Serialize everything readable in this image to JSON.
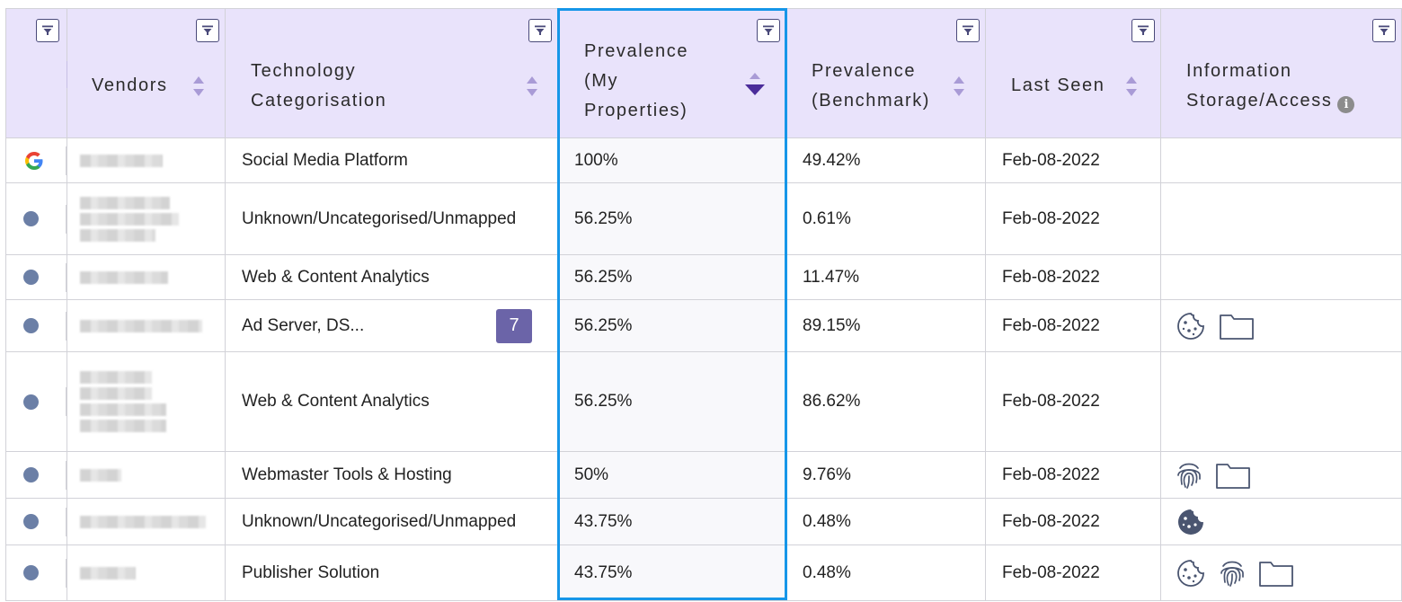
{
  "headers": {
    "vendors": "Vendors",
    "technology": [
      "Technology",
      "Categorisation"
    ],
    "prevalence_mine": [
      "Prevalence",
      "(My",
      "Properties)"
    ],
    "prevalence_bench": [
      "Prevalence",
      "(Benchmark)"
    ],
    "last_seen": "Last Seen",
    "info_storage": [
      "Information",
      "Storage/Access"
    ],
    "info_icon_label": "i"
  },
  "sort": {
    "active_column": "prevalence_mine",
    "direction": "descending"
  },
  "rows": [
    {
      "vendor_icon": "google-logo-icon",
      "category": "Social Media Platform",
      "prevalence_mine": "100%",
      "prevalence_bench": "49.42%",
      "last_seen": "Feb-08-2022",
      "storage_icons": []
    },
    {
      "vendor_icon": "vendor-dot-icon",
      "category": "Unknown/Uncategorised/Unmapped",
      "prevalence_mine": "56.25%",
      "prevalence_bench": "0.61%",
      "last_seen": "Feb-08-2022",
      "storage_icons": []
    },
    {
      "vendor_icon": "vendor-dot-icon",
      "category": "Web & Content Analytics",
      "prevalence_mine": "56.25%",
      "prevalence_bench": "11.47%",
      "last_seen": "Feb-08-2022",
      "storage_icons": []
    },
    {
      "vendor_icon": "vendor-dot-icon",
      "category": "Ad Server, DS...",
      "category_badge": "7",
      "prevalence_mine": "56.25%",
      "prevalence_bench": "89.15%",
      "last_seen": "Feb-08-2022",
      "storage_icons": [
        "cookie-icon",
        "folder-icon"
      ]
    },
    {
      "vendor_icon": "vendor-dot-icon",
      "category": "Web & Content Analytics",
      "prevalence_mine": "56.25%",
      "prevalence_bench": "86.62%",
      "last_seen": "Feb-08-2022",
      "storage_icons": []
    },
    {
      "vendor_icon": "vendor-dot-icon",
      "category": "Webmaster Tools & Hosting",
      "prevalence_mine": "50%",
      "prevalence_bench": "9.76%",
      "last_seen": "Feb-08-2022",
      "storage_icons": [
        "fingerprint-icon",
        "folder-icon"
      ]
    },
    {
      "vendor_icon": "vendor-dot-icon",
      "category": "Unknown/Uncategorised/Unmapped",
      "prevalence_mine": "43.75%",
      "prevalence_bench": "0.48%",
      "last_seen": "Feb-08-2022",
      "storage_icons": [
        "cookie-filled-icon"
      ]
    },
    {
      "vendor_icon": "vendor-dot-icon",
      "category": "Publisher Solution",
      "prevalence_mine": "43.75%",
      "prevalence_bench": "0.48%",
      "last_seen": "Feb-08-2022",
      "storage_icons": [
        "cookie-icon",
        "fingerprint-icon",
        "folder-icon"
      ]
    }
  ],
  "colors": {
    "header_bg": "#e9e3fb",
    "highlight_border": "#1696e8",
    "badge_bg": "#6b64a8",
    "accent_sort": "#4b2c9a"
  }
}
